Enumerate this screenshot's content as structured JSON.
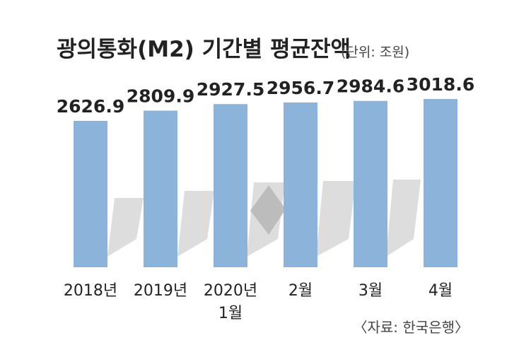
{
  "chart_data": {
    "type": "bar",
    "title": "광의통화(M2) 기간별 평균잔액",
    "unit": "(단위: 조원)",
    "categories": [
      [
        "2018년"
      ],
      [
        "2019년"
      ],
      [
        "2020년",
        "1월"
      ],
      [
        "2월"
      ],
      [
        "3월"
      ],
      [
        "4월"
      ]
    ],
    "values": [
      2626.9,
      2809.9,
      2927.5,
      2956.7,
      2984.6,
      3018.6
    ],
    "value_labels": [
      "2626.9",
      "2809.9",
      "2927.5",
      "2956.7",
      "2984.6",
      "3018.6"
    ],
    "ylim": [
      0,
      3400
    ],
    "grid": false,
    "legend": "none"
  },
  "source": "〈자료: 한국은행〉",
  "colors": {
    "bar": "#8cb3d9",
    "shadow": "#d9d9d9",
    "shadow_overlap": "#b8b8b8",
    "text": "#222222"
  }
}
